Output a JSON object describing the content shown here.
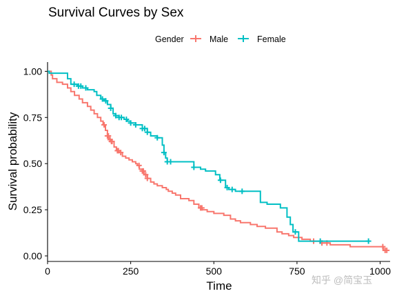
{
  "chart_data": {
    "type": "line",
    "title": "Survival Curves by Sex",
    "xlabel": "Time",
    "ylabel": "Survival probability",
    "xlim": [
      0,
      1030
    ],
    "ylim": [
      -0.03,
      1.05
    ],
    "x_ticks": [
      0,
      250,
      500,
      750,
      1000
    ],
    "y_ticks": [
      0.0,
      0.25,
      0.5,
      0.75,
      1.0
    ],
    "x_tick_labels": [
      "0",
      "250",
      "500",
      "750",
      "1000"
    ],
    "y_tick_labels": [
      "0.00",
      "0.25",
      "0.50",
      "0.75",
      "1.00"
    ],
    "grid": false,
    "legend": {
      "title": "Gender",
      "position": "top"
    },
    "series": [
      {
        "name": "Male",
        "color": "#F8766D",
        "step_points": [
          [
            0,
            1.0
          ],
          [
            11,
            0.98
          ],
          [
            15,
            0.96
          ],
          [
            28,
            0.94
          ],
          [
            45,
            0.93
          ],
          [
            60,
            0.91
          ],
          [
            70,
            0.89
          ],
          [
            81,
            0.87
          ],
          [
            95,
            0.85
          ],
          [
            105,
            0.83
          ],
          [
            120,
            0.81
          ],
          [
            130,
            0.79
          ],
          [
            140,
            0.77
          ],
          [
            150,
            0.75
          ],
          [
            160,
            0.73
          ],
          [
            167,
            0.71
          ],
          [
            174,
            0.68
          ],
          [
            180,
            0.65
          ],
          [
            184,
            0.63
          ],
          [
            190,
            0.62
          ],
          [
            200,
            0.59
          ],
          [
            207,
            0.57
          ],
          [
            215,
            0.56
          ],
          [
            225,
            0.54
          ],
          [
            235,
            0.53
          ],
          [
            245,
            0.52
          ],
          [
            255,
            0.51
          ],
          [
            265,
            0.5
          ],
          [
            270,
            0.49
          ],
          [
            276,
            0.47
          ],
          [
            285,
            0.46
          ],
          [
            290,
            0.44
          ],
          [
            300,
            0.42
          ],
          [
            310,
            0.4
          ],
          [
            320,
            0.39
          ],
          [
            330,
            0.38
          ],
          [
            345,
            0.37
          ],
          [
            357,
            0.36
          ],
          [
            363,
            0.35
          ],
          [
            375,
            0.34
          ],
          [
            385,
            0.33
          ],
          [
            400,
            0.31
          ],
          [
            425,
            0.3
          ],
          [
            440,
            0.28
          ],
          [
            455,
            0.26
          ],
          [
            465,
            0.25
          ],
          [
            480,
            0.24
          ],
          [
            500,
            0.23
          ],
          [
            530,
            0.22
          ],
          [
            550,
            0.2
          ],
          [
            565,
            0.19
          ],
          [
            580,
            0.18
          ],
          [
            610,
            0.17
          ],
          [
            630,
            0.16
          ],
          [
            655,
            0.15
          ],
          [
            690,
            0.13
          ],
          [
            705,
            0.12
          ],
          [
            725,
            0.11
          ],
          [
            740,
            0.1
          ],
          [
            765,
            0.09
          ],
          [
            790,
            0.08
          ],
          [
            820,
            0.07
          ],
          [
            850,
            0.06
          ],
          [
            910,
            0.05
          ],
          [
            1010,
            0.03
          ],
          [
            1022,
            0.03
          ]
        ],
        "censor_times": [
          170,
          180,
          183,
          188,
          192,
          194,
          210,
          213,
          220,
          275,
          285,
          288,
          295,
          300,
          460,
          464,
          800,
          825,
          840,
          1008,
          1015,
          1020
        ]
      },
      {
        "name": "Female",
        "color": "#00BFC4",
        "step_points": [
          [
            0,
            1.0
          ],
          [
            5,
            0.99
          ],
          [
            60,
            0.96
          ],
          [
            70,
            0.93
          ],
          [
            90,
            0.92
          ],
          [
            105,
            0.91
          ],
          [
            120,
            0.9
          ],
          [
            140,
            0.89
          ],
          [
            148,
            0.87
          ],
          [
            160,
            0.85
          ],
          [
            170,
            0.84
          ],
          [
            180,
            0.82
          ],
          [
            190,
            0.8
          ],
          [
            197,
            0.77
          ],
          [
            205,
            0.76
          ],
          [
            215,
            0.75
          ],
          [
            230,
            0.74
          ],
          [
            240,
            0.73
          ],
          [
            250,
            0.72
          ],
          [
            265,
            0.71
          ],
          [
            285,
            0.69
          ],
          [
            300,
            0.67
          ],
          [
            310,
            0.65
          ],
          [
            330,
            0.64
          ],
          [
            345,
            0.6
          ],
          [
            350,
            0.56
          ],
          [
            355,
            0.53
          ],
          [
            360,
            0.51
          ],
          [
            440,
            0.48
          ],
          [
            460,
            0.47
          ],
          [
            475,
            0.46
          ],
          [
            505,
            0.44
          ],
          [
            518,
            0.41
          ],
          [
            535,
            0.37
          ],
          [
            545,
            0.36
          ],
          [
            565,
            0.35
          ],
          [
            640,
            0.29
          ],
          [
            660,
            0.28
          ],
          [
            700,
            0.26
          ],
          [
            720,
            0.21
          ],
          [
            730,
            0.17
          ],
          [
            738,
            0.13
          ],
          [
            755,
            0.08
          ],
          [
            965,
            0.08
          ]
        ],
        "censor_times": [
          80,
          93,
          100,
          115,
          165,
          175,
          190,
          205,
          215,
          222,
          237,
          250,
          265,
          285,
          292,
          300,
          330,
          350,
          360,
          370,
          440,
          520,
          540,
          555,
          585,
          745,
          820,
          965
        ]
      }
    ]
  },
  "watermark": "知乎 @简宝玉"
}
